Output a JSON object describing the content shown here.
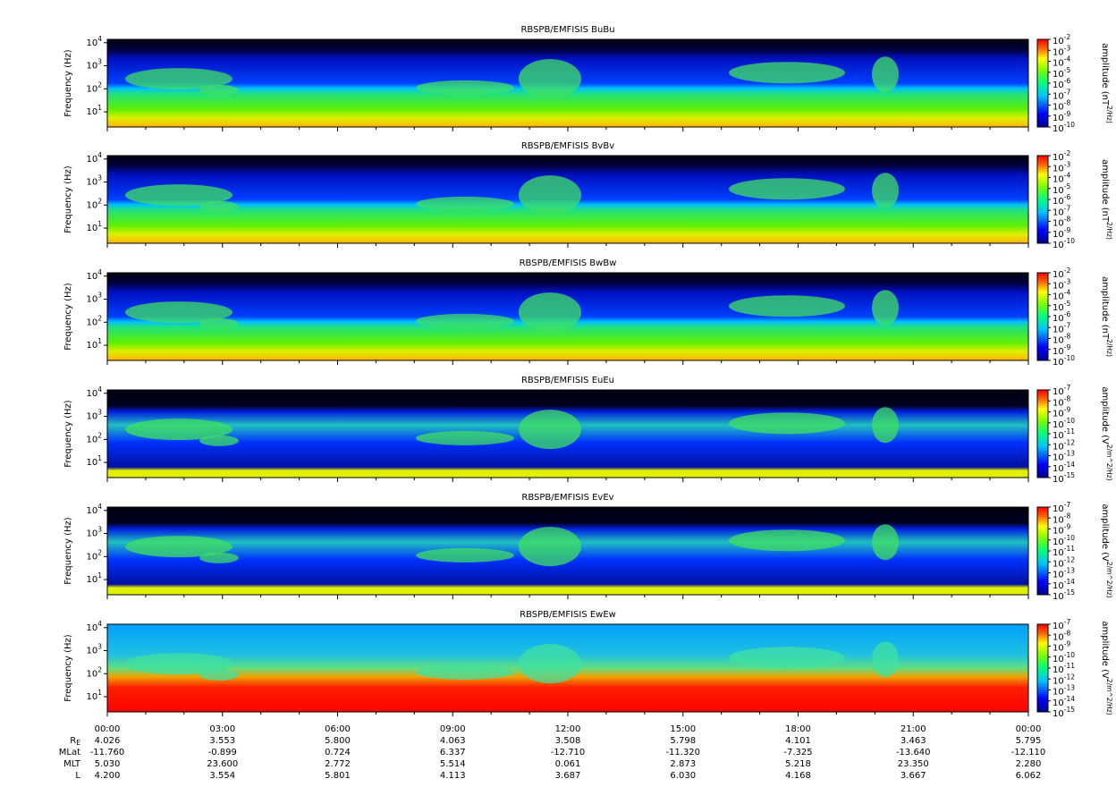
{
  "chart_data": [
    {
      "type": "spectrogram",
      "title": "RBSPB/EMFISIS  BuBu",
      "ylabel": "Frequency (Hz)",
      "ylim": [
        2.2,
        14000
      ],
      "yticks": [
        {
          "value": 10,
          "label": "10^1"
        },
        {
          "value": 100,
          "label": "10^2"
        },
        {
          "value": 1000,
          "label": "10^3"
        },
        {
          "value": 10000,
          "label": "10^4"
        }
      ],
      "colorbar": {
        "label": "amplitude (nT^2/Hz)",
        "lim": [
          1e-10,
          0.01
        ],
        "ticks": [
          {
            "value": 0.01,
            "label": "10^-2"
          },
          {
            "value": 0.001,
            "label": "10^-3"
          },
          {
            "value": 0.0001,
            "label": "10^-4"
          },
          {
            "value": 1e-05,
            "label": "10^-5"
          },
          {
            "value": 1e-06,
            "label": "10^-6"
          },
          {
            "value": 1e-07,
            "label": "10^-7"
          },
          {
            "value": 1e-08,
            "label": "10^-8"
          },
          {
            "value": 1e-09,
            "label": "10^-9"
          },
          {
            "value": 1e-10,
            "label": "10^-10"
          }
        ]
      }
    },
    {
      "type": "spectrogram",
      "title": "RBSPB/EMFISIS  BvBv",
      "ylabel": "Frequency (Hz)",
      "ylim": [
        2.2,
        14000
      ],
      "yticks": [
        {
          "value": 10,
          "label": "10^1"
        },
        {
          "value": 100,
          "label": "10^2"
        },
        {
          "value": 1000,
          "label": "10^3"
        },
        {
          "value": 10000,
          "label": "10^4"
        }
      ],
      "colorbar": {
        "label": "amplitude (nT^2/Hz)",
        "lim": [
          1e-10,
          0.01
        ],
        "ticks": [
          {
            "value": 0.01,
            "label": "10^-2"
          },
          {
            "value": 0.001,
            "label": "10^-3"
          },
          {
            "value": 0.0001,
            "label": "10^-4"
          },
          {
            "value": 1e-05,
            "label": "10^-5"
          },
          {
            "value": 1e-06,
            "label": "10^-6"
          },
          {
            "value": 1e-07,
            "label": "10^-7"
          },
          {
            "value": 1e-08,
            "label": "10^-8"
          },
          {
            "value": 1e-09,
            "label": "10^-9"
          },
          {
            "value": 1e-10,
            "label": "10^-10"
          }
        ]
      }
    },
    {
      "type": "spectrogram",
      "title": "RBSPB/EMFISIS  BwBw",
      "ylabel": "Frequency (Hz)",
      "ylim": [
        2.2,
        14000
      ],
      "yticks": [
        {
          "value": 10,
          "label": "10^1"
        },
        {
          "value": 100,
          "label": "10^2"
        },
        {
          "value": 1000,
          "label": "10^3"
        },
        {
          "value": 10000,
          "label": "10^4"
        }
      ],
      "colorbar": {
        "label": "amplitude (nT^2/Hz)",
        "lim": [
          1e-10,
          0.01
        ],
        "ticks": [
          {
            "value": 0.01,
            "label": "10^-2"
          },
          {
            "value": 0.001,
            "label": "10^-3"
          },
          {
            "value": 0.0001,
            "label": "10^-4"
          },
          {
            "value": 1e-05,
            "label": "10^-5"
          },
          {
            "value": 1e-06,
            "label": "10^-6"
          },
          {
            "value": 1e-07,
            "label": "10^-7"
          },
          {
            "value": 1e-08,
            "label": "10^-8"
          },
          {
            "value": 1e-09,
            "label": "10^-9"
          },
          {
            "value": 1e-10,
            "label": "10^-10"
          }
        ]
      }
    },
    {
      "type": "spectrogram",
      "title": "RBSPB/EMFISIS  EuEu",
      "ylabel": "Frequency (Hz)",
      "ylim": [
        2.2,
        14000
      ],
      "yticks": [
        {
          "value": 10,
          "label": "10^1"
        },
        {
          "value": 100,
          "label": "10^2"
        },
        {
          "value": 1000,
          "label": "10^3"
        },
        {
          "value": 10000,
          "label": "10^4"
        }
      ],
      "colorbar": {
        "label": "amplitude (V^2/m^2/Hz)",
        "lim": [
          1e-15,
          1e-07
        ],
        "ticks": [
          {
            "value": 1e-07,
            "label": "10^-7"
          },
          {
            "value": 1e-08,
            "label": "10^-8"
          },
          {
            "value": 1e-09,
            "label": "10^-9"
          },
          {
            "value": 1e-10,
            "label": "10^-10"
          },
          {
            "value": 1e-11,
            "label": "10^-11"
          },
          {
            "value": 1e-12,
            "label": "10^-12"
          },
          {
            "value": 1e-13,
            "label": "10^-13"
          },
          {
            "value": 1e-14,
            "label": "10^-14"
          },
          {
            "value": 1e-15,
            "label": "10^-15"
          }
        ]
      }
    },
    {
      "type": "spectrogram",
      "title": "RBSPB/EMFISIS  EvEv",
      "ylabel": "Frequency (Hz)",
      "ylim": [
        2.2,
        14000
      ],
      "yticks": [
        {
          "value": 10,
          "label": "10^1"
        },
        {
          "value": 100,
          "label": "10^2"
        },
        {
          "value": 1000,
          "label": "10^3"
        },
        {
          "value": 10000,
          "label": "10^4"
        }
      ],
      "colorbar": {
        "label": "amplitude (V^2/m^2/Hz)",
        "lim": [
          1e-15,
          1e-07
        ],
        "ticks": [
          {
            "value": 1e-07,
            "label": "10^-7"
          },
          {
            "value": 1e-08,
            "label": "10^-8"
          },
          {
            "value": 1e-09,
            "label": "10^-9"
          },
          {
            "value": 1e-10,
            "label": "10^-10"
          },
          {
            "value": 1e-11,
            "label": "10^-11"
          },
          {
            "value": 1e-12,
            "label": "10^-12"
          },
          {
            "value": 1e-13,
            "label": "10^-13"
          },
          {
            "value": 1e-14,
            "label": "10^-14"
          },
          {
            "value": 1e-15,
            "label": "10^-15"
          }
        ]
      }
    },
    {
      "type": "spectrogram",
      "title": "RBSPB/EMFISIS  EwEw",
      "ylabel": "Frequency (Hz)",
      "ylim": [
        2.2,
        14000
      ],
      "yticks": [
        {
          "value": 10,
          "label": "10^1"
        },
        {
          "value": 100,
          "label": "10^2"
        },
        {
          "value": 1000,
          "label": "10^3"
        },
        {
          "value": 10000,
          "label": "10^4"
        }
      ],
      "colorbar": {
        "label": "amplitude (V^2/m^2/Hz)",
        "lim": [
          1e-15,
          1e-07
        ],
        "ticks": [
          {
            "value": 1e-07,
            "label": "10^-7"
          },
          {
            "value": 1e-08,
            "label": "10^-8"
          },
          {
            "value": 1e-09,
            "label": "10^-9"
          },
          {
            "value": 1e-10,
            "label": "10^-10"
          },
          {
            "value": 1e-11,
            "label": "10^-11"
          },
          {
            "value": 1e-12,
            "label": "10^-12"
          },
          {
            "value": 1e-13,
            "label": "10^-13"
          },
          {
            "value": 1e-14,
            "label": "10^-14"
          },
          {
            "value": 1e-15,
            "label": "10^-15"
          }
        ]
      }
    }
  ],
  "time_axis": {
    "ticks": [
      "00:00",
      "03:00",
      "06:00",
      "09:00",
      "12:00",
      "15:00",
      "18:00",
      "21:00",
      "00:00"
    ]
  },
  "ephemeris": [
    {
      "label": "R_E",
      "values": [
        "4.026",
        "3.553",
        "5.800",
        "4.063",
        "3.508",
        "5.798",
        "4.101",
        "3.463",
        "5.795"
      ]
    },
    {
      "label": "MLat",
      "values": [
        "-11.760",
        "-0.899",
        "0.724",
        "6.337",
        "-12.710",
        "-11.320",
        "-7.325",
        "-13.640",
        "-12.110"
      ]
    },
    {
      "label": "MLT",
      "values": [
        "5.030",
        "23.600",
        "2.772",
        "5.514",
        "0.061",
        "2.873",
        "5.218",
        "23.350",
        "2.280"
      ]
    },
    {
      "label": "L",
      "values": [
        "4.200",
        "3.554",
        "5.801",
        "4.113",
        "3.687",
        "6.030",
        "4.168",
        "3.667",
        "6.062"
      ]
    }
  ]
}
